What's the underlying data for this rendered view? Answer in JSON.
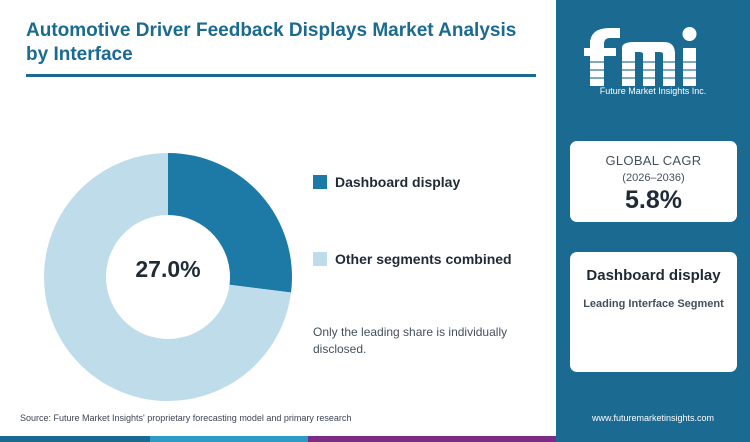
{
  "title": "Automotive Driver Feedback Displays Market Analysis by Interface",
  "chart_data": {
    "type": "pie",
    "variant": "donut",
    "center_label": "27.0%",
    "slices": [
      {
        "label": "Dashboard display",
        "value": 27.0,
        "color": "#1d7aa6"
      },
      {
        "label": "Other segments combined",
        "value": 73.0,
        "color": "#bfdcea"
      }
    ],
    "legend": [
      "Dashboard display",
      "Other segments combined"
    ],
    "legend_placement": "right"
  },
  "note": "Only the leading share is individually disclosed.",
  "source": "Source: Future Market Insights' proprietary forecasting model and primary research",
  "sidebar": {
    "logo_text": "fmi",
    "logo_subtitle": "Future Market Insights Inc.",
    "cagr_label": "GLOBAL CAGR",
    "cagr_period": "(2026–2036)",
    "cagr_value": "5.8%",
    "segment_name": "Dashboard display",
    "segment_desc": "Leading Interface Segment",
    "url": "www.futuremarketinsights.com"
  },
  "colors": {
    "primary": "#1a6a91",
    "accent_bar": [
      "#1a6a91",
      "#2e9bc4",
      "#7a2d82",
      "#1a6a91"
    ]
  }
}
